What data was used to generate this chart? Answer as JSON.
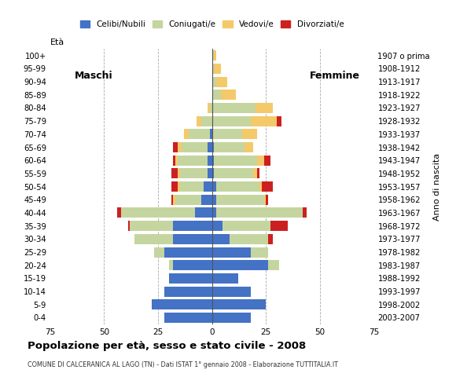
{
  "age_groups": [
    "0-4",
    "5-9",
    "10-14",
    "15-19",
    "20-24",
    "25-29",
    "30-34",
    "35-39",
    "40-44",
    "45-49",
    "50-54",
    "55-59",
    "60-64",
    "65-69",
    "70-74",
    "75-79",
    "80-84",
    "85-89",
    "90-94",
    "95-99",
    "100+"
  ],
  "birth_years": [
    "2003-2007",
    "1998-2002",
    "1993-1997",
    "1988-1992",
    "1983-1987",
    "1978-1982",
    "1973-1977",
    "1968-1972",
    "1963-1967",
    "1958-1962",
    "1953-1957",
    "1948-1952",
    "1943-1947",
    "1938-1942",
    "1933-1937",
    "1928-1932",
    "1923-1927",
    "1918-1922",
    "1913-1917",
    "1908-1912",
    "1907 o prima"
  ],
  "male_celibe": [
    22,
    28,
    22,
    20,
    18,
    22,
    18,
    18,
    8,
    5,
    4,
    2,
    2,
    2,
    1,
    0,
    0,
    0,
    0,
    0,
    0
  ],
  "male_coniugato": [
    0,
    0,
    0,
    0,
    2,
    5,
    18,
    20,
    34,
    12,
    11,
    13,
    14,
    12,
    10,
    5,
    1,
    0,
    0,
    0,
    0
  ],
  "male_vedovo": [
    0,
    0,
    0,
    0,
    0,
    0,
    0,
    0,
    0,
    1,
    1,
    1,
    1,
    2,
    2,
    2,
    1,
    0,
    0,
    0,
    0
  ],
  "male_divorziato": [
    0,
    0,
    0,
    0,
    0,
    0,
    0,
    1,
    2,
    1,
    3,
    3,
    1,
    2,
    0,
    0,
    0,
    0,
    0,
    0,
    0
  ],
  "female_nubile": [
    18,
    25,
    18,
    12,
    26,
    18,
    8,
    5,
    2,
    2,
    2,
    1,
    1,
    1,
    0,
    0,
    0,
    0,
    0,
    0,
    0
  ],
  "female_coniugata": [
    0,
    0,
    0,
    0,
    5,
    8,
    18,
    22,
    40,
    22,
    20,
    18,
    20,
    14,
    14,
    18,
    20,
    4,
    2,
    1,
    1
  ],
  "female_vedova": [
    0,
    0,
    0,
    0,
    0,
    0,
    0,
    0,
    0,
    1,
    1,
    2,
    3,
    4,
    7,
    12,
    8,
    7,
    5,
    3,
    1
  ],
  "female_divorziata": [
    0,
    0,
    0,
    0,
    0,
    0,
    2,
    8,
    2,
    1,
    5,
    1,
    3,
    0,
    0,
    2,
    0,
    0,
    0,
    0,
    0
  ],
  "colors": {
    "celibe_nubile": "#4472c4",
    "coniugato_coniugata": "#c5d5a0",
    "vedovo_vedova": "#f4c96a",
    "divorziato_divorziata": "#cc2020"
  },
  "title": "Popolazione per età, sesso e stato civile - 2008",
  "subtitle": "COMUNE DI CALCERANICA AL LAGO (TN) - Dati ISTAT 1° gennaio 2008 - Elaborazione TUTTITALIA.IT",
  "xlabel_left": "Maschi",
  "xlabel_right": "Femmine",
  "ylabel": "Età",
  "ylabel_right": "Anno di nascita",
  "xlim": 75,
  "legend_labels": [
    "Celibi/Nubili",
    "Coniugati/e",
    "Vedovi/e",
    "Divorziati/e"
  ]
}
